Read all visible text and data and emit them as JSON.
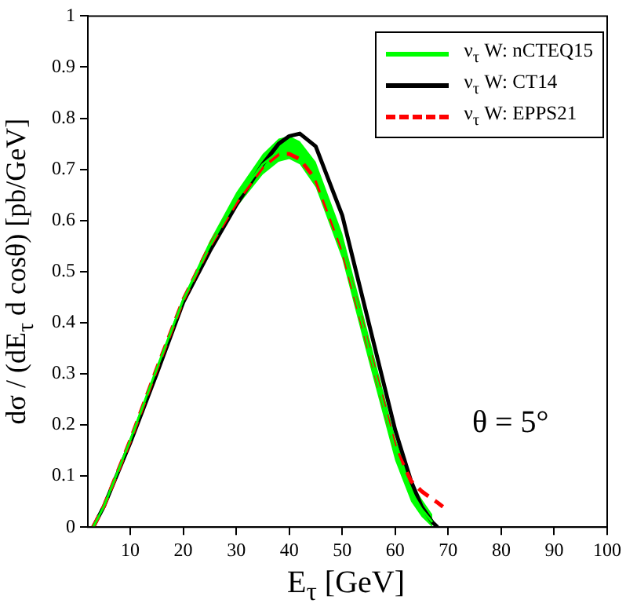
{
  "chart_data": {
    "type": "line",
    "xlabel": "E$_{τ}$ [GeV]",
    "ylabel": "dσ / (dE$_{τ}$ d cosθ) [pb/GeV]",
    "x": [
      3,
      5,
      10,
      15,
      20,
      25,
      30,
      35,
      38,
      40,
      42,
      45,
      50,
      55,
      60,
      63,
      65,
      67,
      68,
      69
    ],
    "xlim": [
      2,
      100
    ],
    "xticks": [
      10,
      20,
      30,
      40,
      50,
      60,
      70,
      80,
      90,
      100
    ],
    "ylim": [
      0,
      1
    ],
    "yticks": [
      0,
      0.1,
      0.2,
      0.3,
      0.4,
      0.5,
      0.6,
      0.7,
      0.8,
      0.9,
      1
    ],
    "grid": false,
    "legend": "top right",
    "marker": "none",
    "series": [
      {
        "name": "ν$_{τ}$ W: nCTEQ15",
        "color": "#00ff00",
        "line_style": "solid",
        "values": [
          0,
          0.04,
          0.17,
          0.31,
          0.445,
          0.55,
          0.64,
          0.71,
          0.735,
          0.74,
          0.73,
          0.69,
          0.55,
          0.35,
          0.15,
          0.07,
          0.035,
          0.01,
          null,
          null
        ],
        "upper": [
          0,
          0.045,
          0.175,
          0.315,
          0.45,
          0.56,
          0.655,
          0.73,
          0.76,
          0.765,
          0.755,
          0.715,
          0.575,
          0.375,
          0.175,
          0.09,
          0.055,
          0.025,
          null,
          null
        ],
        "lower": [
          0,
          0.035,
          0.165,
          0.305,
          0.44,
          0.54,
          0.625,
          0.69,
          0.715,
          0.72,
          0.71,
          0.665,
          0.525,
          0.325,
          0.13,
          0.05,
          0.02,
          0,
          null,
          null
        ]
      },
      {
        "name": "ν$_{τ}$ W: CT14",
        "color": "#000000",
        "line_style": "solid",
        "values": [
          0,
          0.04,
          0.165,
          0.3,
          0.44,
          0.54,
          0.63,
          0.71,
          0.75,
          0.765,
          0.77,
          0.745,
          0.61,
          0.4,
          0.19,
          0.09,
          0.04,
          0.01,
          0,
          null
        ]
      },
      {
        "name": "ν$_{τ}$ W: EPPS21",
        "color": "#ff0000",
        "line_style": "dashed",
        "values": [
          0,
          0.04,
          0.17,
          0.31,
          0.445,
          0.55,
          0.635,
          0.705,
          0.73,
          0.73,
          0.72,
          0.68,
          0.545,
          0.35,
          0.155,
          0.09,
          0.07,
          0.055,
          0.048,
          0.04
        ]
      }
    ],
    "annotations": [
      "θ = 5°"
    ]
  }
}
